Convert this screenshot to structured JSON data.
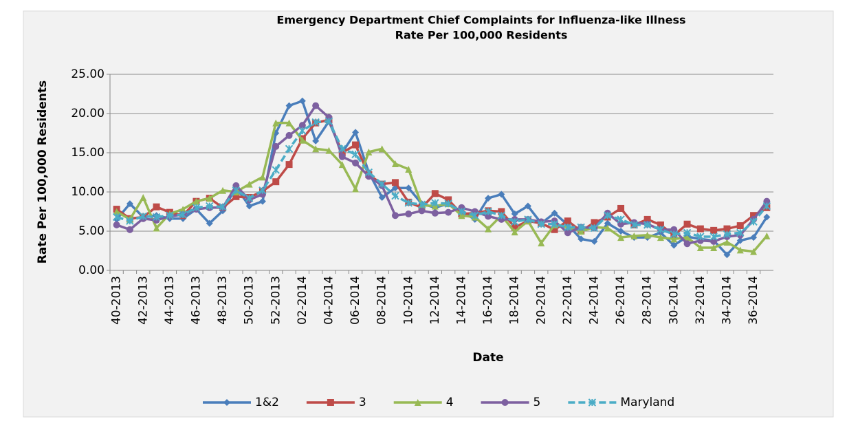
{
  "chart_data": {
    "type": "line",
    "title": "Emergency Department Chief Complaints for Influenza-like Illness",
    "subtitle": "Rate Per 100,000 Residents",
    "x_label": "Date",
    "y_label": "Rate Per 100,000 Residents",
    "categories": [
      "40-2013",
      null,
      "42-2013",
      null,
      "44-2013",
      null,
      "46-2013",
      null,
      "48-2013",
      null,
      "50-2013",
      null,
      "52-2013",
      null,
      "02-2014",
      null,
      "04-2014",
      null,
      "06-2014",
      null,
      "08-2014",
      null,
      "10-2014",
      null,
      "12-2014",
      null,
      "14-2014",
      null,
      "16-2014",
      null,
      "18-2014",
      null,
      "20-2014",
      null,
      "22-2014",
      null,
      "24-2014",
      null,
      "26-2014",
      null,
      "28-2014",
      null,
      "30-2014",
      null,
      "32-2014",
      null,
      "34-2014",
      null,
      "36-2014",
      null
    ],
    "series": [
      {
        "name": "1&2",
        "color": "#4a7ebb",
        "marker": "diamond",
        "values": [
          6.5,
          8.5,
          6.8,
          7.0,
          6.6,
          6.6,
          7.8,
          6.0,
          7.6,
          10.6,
          8.2,
          8.8,
          17.5,
          21.0,
          21.6,
          16.5,
          19.0,
          15.0,
          17.6,
          12.5,
          9.3,
          10.5,
          10.5,
          8.5,
          8.0,
          8.5,
          7.5,
          6.5,
          9.2,
          9.7,
          7.2,
          8.2,
          6.0,
          7.3,
          5.8,
          4.0,
          3.7,
          6.0,
          5.0,
          4.2,
          4.2,
          4.8,
          3.2,
          4.3,
          4.0,
          3.8,
          2.0,
          3.8,
          4.2,
          6.8
        ]
      },
      {
        "name": "3",
        "color": "#be4b48",
        "marker": "square",
        "values": [
          7.8,
          6.6,
          6.8,
          8.1,
          7.4,
          7.0,
          8.8,
          9.2,
          8.0,
          9.4,
          9.3,
          10.1,
          11.3,
          13.5,
          16.8,
          18.8,
          19.2,
          15.0,
          16.0,
          12.2,
          11.0,
          11.2,
          8.7,
          8.0,
          9.8,
          9.0,
          7.2,
          7.3,
          7.6,
          7.5,
          5.5,
          6.3,
          6.0,
          5.2,
          6.3,
          5.0,
          6.1,
          6.8,
          7.9,
          5.8,
          6.5,
          5.8,
          4.5,
          5.9,
          5.3,
          5.1,
          5.3,
          5.7,
          7.0,
          8.0
        ]
      },
      {
        "name": "4",
        "color": "#98b954",
        "marker": "triangle",
        "values": [
          7.5,
          6.5,
          9.3,
          5.4,
          7.2,
          7.8,
          8.8,
          9.2,
          10.2,
          10.0,
          11.0,
          11.9,
          18.8,
          18.8,
          16.6,
          15.5,
          15.3,
          13.5,
          10.4,
          15.1,
          15.5,
          13.6,
          12.9,
          8.3,
          8.2,
          8.5,
          7.0,
          6.8,
          5.3,
          7.0,
          4.9,
          6.3,
          3.5,
          5.8,
          5.5,
          5.0,
          5.5,
          5.4,
          4.2,
          4.4,
          4.5,
          4.2,
          4.0,
          4.2,
          2.9,
          2.9,
          3.6,
          2.6,
          2.4,
          4.4
        ]
      },
      {
        "name": "5",
        "color": "#7d60a0",
        "marker": "circle",
        "values": [
          5.8,
          5.2,
          6.6,
          6.4,
          6.9,
          7.1,
          7.8,
          8.0,
          8.0,
          10.8,
          9.0,
          9.7,
          15.8,
          17.2,
          18.5,
          21.0,
          19.5,
          14.5,
          13.7,
          12.0,
          10.8,
          7.0,
          7.2,
          7.6,
          7.3,
          7.4,
          8.0,
          7.5,
          6.9,
          6.5,
          6.5,
          6.5,
          6.2,
          6.3,
          4.8,
          5.5,
          5.4,
          7.3,
          5.9,
          6.1,
          5.9,
          5.2,
          5.2,
          3.4,
          3.8,
          3.7,
          4.3,
          4.5,
          6.5,
          8.8
        ]
      },
      {
        "name": "Maryland",
        "color": "#4bacc6",
        "marker": "star",
        "dashed": true,
        "values": [
          6.8,
          6.3,
          6.9,
          6.8,
          7.0,
          7.1,
          8.0,
          8.2,
          8.1,
          10.2,
          9.2,
          10.2,
          12.8,
          15.5,
          17.8,
          18.9,
          19.0,
          15.5,
          14.8,
          12.5,
          11.0,
          9.5,
          8.6,
          8.4,
          8.6,
          8.5,
          7.5,
          7.0,
          7.5,
          7.0,
          6.2,
          6.5,
          5.9,
          5.9,
          5.5,
          5.5,
          5.4,
          7.0,
          6.5,
          5.8,
          5.8,
          5.2,
          4.6,
          4.8,
          4.3,
          4.3,
          4.6,
          4.8,
          6.2,
          8.2
        ]
      }
    ],
    "ylim": [
      0,
      25
    ],
    "yticks": [
      {
        "value": 0,
        "label": "0.00"
      },
      {
        "value": 5,
        "label": "5.00"
      },
      {
        "value": 10,
        "label": "10.00"
      },
      {
        "value": 15,
        "label": "15.00"
      },
      {
        "value": 20,
        "label": "20.00"
      },
      {
        "value": 25,
        "label": "25.00"
      }
    ],
    "grid": true,
    "legend": "bottom"
  }
}
